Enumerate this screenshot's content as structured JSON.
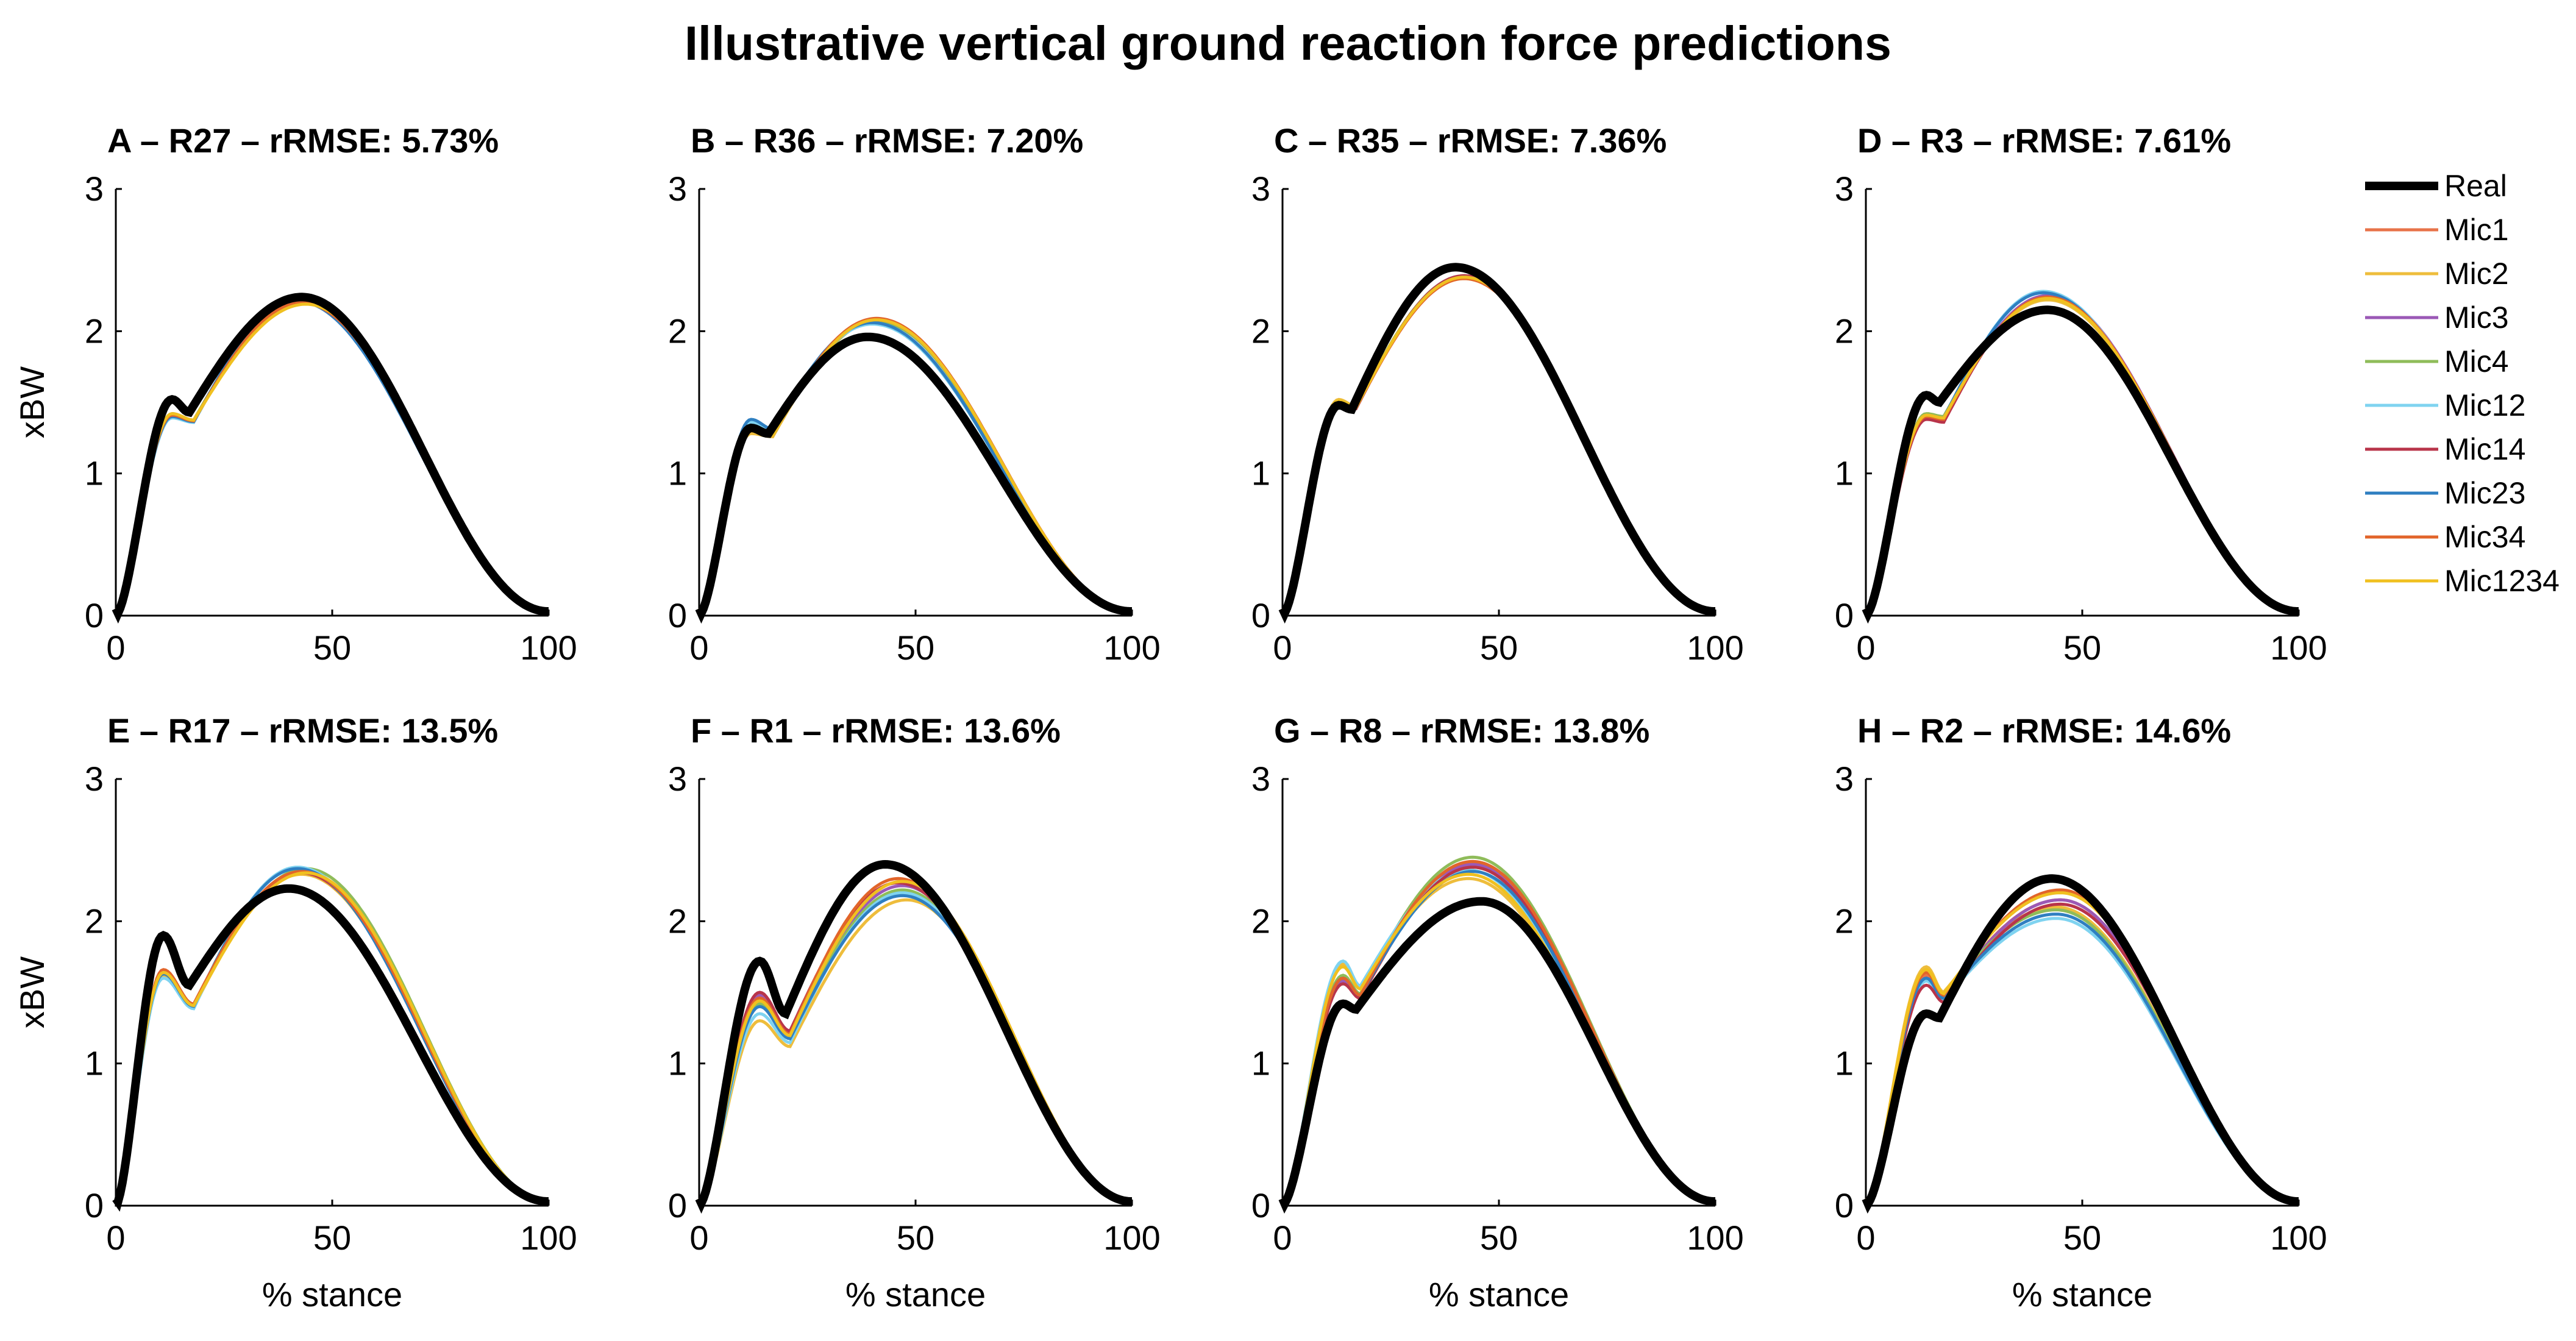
{
  "figure_title": "Illustrative vertical ground reaction force predictions",
  "x_axis_label": "% stance",
  "y_axis_label": "xBW",
  "x_ticks": [
    "0",
    "50",
    "100"
  ],
  "y_ticks": [
    "0",
    "1",
    "2",
    "3"
  ],
  "legend": [
    {
      "name": "Real",
      "color": "#000000"
    },
    {
      "name": "Mic1",
      "color": "#e8734a"
    },
    {
      "name": "Mic2",
      "color": "#eebd3c"
    },
    {
      "name": "Mic3",
      "color": "#9b59b6"
    },
    {
      "name": "Mic4",
      "color": "#8fbc5a"
    },
    {
      "name": "Mic12",
      "color": "#7fd3f0"
    },
    {
      "name": "Mic14",
      "color": "#b8344a"
    },
    {
      "name": "Mic23",
      "color": "#2f7fc1"
    },
    {
      "name": "Mic34",
      "color": "#e2652a"
    },
    {
      "name": "Mic1234",
      "color": "#f0c020"
    }
  ],
  "chart_data": [
    {
      "type": "line",
      "title": "A – R27 – rRMSE: 5.73%",
      "xlabel": "",
      "ylabel": "xBW",
      "xlim": [
        0,
        100
      ],
      "ylim": [
        0,
        3
      ],
      "real": {
        "impact_peak": 1.52,
        "impact_pos": 13,
        "valley": 1.43,
        "valley_pos": 17,
        "active_peak": 2.24,
        "active_pos": 43
      },
      "series": [
        {
          "name": "Mic1",
          "impact_peak": 1.42,
          "active_peak": 2.2,
          "active_pos": 43
        },
        {
          "name": "Mic2",
          "impact_peak": 1.4,
          "active_peak": 2.21,
          "active_pos": 43
        },
        {
          "name": "Mic3",
          "impact_peak": 1.41,
          "active_peak": 2.2,
          "active_pos": 43
        },
        {
          "name": "Mic4",
          "impact_peak": 1.42,
          "active_peak": 2.21,
          "active_pos": 43
        },
        {
          "name": "Mic12",
          "impact_peak": 1.39,
          "active_peak": 2.22,
          "active_pos": 42
        },
        {
          "name": "Mic14",
          "impact_peak": 1.41,
          "active_peak": 2.2,
          "active_pos": 43
        },
        {
          "name": "Mic23",
          "impact_peak": 1.4,
          "active_peak": 2.21,
          "active_pos": 42
        },
        {
          "name": "Mic34",
          "impact_peak": 1.41,
          "active_peak": 2.2,
          "active_pos": 43
        },
        {
          "name": "Mic1234",
          "impact_peak": 1.42,
          "active_peak": 2.19,
          "active_pos": 44
        }
      ]
    },
    {
      "type": "line",
      "title": "B – R36 – rRMSE: 7.20%",
      "xlabel": "",
      "ylabel": "",
      "xlim": [
        0,
        100
      ],
      "ylim": [
        0,
        3
      ],
      "real": {
        "impact_peak": 1.32,
        "impact_pos": 12,
        "valley": 1.28,
        "valley_pos": 16,
        "active_peak": 1.96,
        "active_pos": 39
      },
      "series": [
        {
          "name": "Mic1",
          "impact_peak": 1.3,
          "active_peak": 2.08,
          "active_pos": 41
        },
        {
          "name": "Mic2",
          "impact_peak": 1.28,
          "active_peak": 2.07,
          "active_pos": 41
        },
        {
          "name": "Mic3",
          "impact_peak": 1.31,
          "active_peak": 2.08,
          "active_pos": 41
        },
        {
          "name": "Mic4",
          "impact_peak": 1.3,
          "active_peak": 2.07,
          "active_pos": 41
        },
        {
          "name": "Mic12",
          "impact_peak": 1.36,
          "active_peak": 2.05,
          "active_pos": 40
        },
        {
          "name": "Mic14",
          "impact_peak": 1.3,
          "active_peak": 2.08,
          "active_pos": 41
        },
        {
          "name": "Mic23",
          "impact_peak": 1.38,
          "active_peak": 2.06,
          "active_pos": 40
        },
        {
          "name": "Mic34",
          "impact_peak": 1.32,
          "active_peak": 2.09,
          "active_pos": 41
        },
        {
          "name": "Mic1234",
          "impact_peak": 1.3,
          "active_peak": 2.08,
          "active_pos": 41
        }
      ]
    },
    {
      "type": "line",
      "title": "C – R35 – rRMSE: 7.36%",
      "xlabel": "",
      "ylabel": "",
      "xlim": [
        0,
        100
      ],
      "ylim": [
        0,
        3
      ],
      "real": {
        "impact_peak": 1.48,
        "impact_pos": 13,
        "valley": 1.45,
        "valley_pos": 16,
        "active_peak": 2.45,
        "active_pos": 40
      },
      "series": [
        {
          "name": "Mic1",
          "impact_peak": 1.5,
          "active_peak": 2.38,
          "active_pos": 42
        },
        {
          "name": "Mic2",
          "impact_peak": 1.52,
          "active_peak": 2.37,
          "active_pos": 42
        },
        {
          "name": "Mic3",
          "impact_peak": 1.5,
          "active_peak": 2.38,
          "active_pos": 42
        },
        {
          "name": "Mic4",
          "impact_peak": 1.51,
          "active_peak": 2.39,
          "active_pos": 42
        },
        {
          "name": "Mic12",
          "impact_peak": 1.5,
          "active_peak": 2.38,
          "active_pos": 42
        },
        {
          "name": "Mic14",
          "impact_peak": 1.49,
          "active_peak": 2.39,
          "active_pos": 42
        },
        {
          "name": "Mic23",
          "impact_peak": 1.5,
          "active_peak": 2.38,
          "active_pos": 42
        },
        {
          "name": "Mic34",
          "impact_peak": 1.5,
          "active_peak": 2.37,
          "active_pos": 42
        },
        {
          "name": "Mic1234",
          "impact_peak": 1.51,
          "active_peak": 2.38,
          "active_pos": 42
        }
      ]
    },
    {
      "type": "line",
      "title": "D – R3 – rRMSE: 7.61%",
      "xlabel": "",
      "ylabel": "",
      "xlim": [
        0,
        100
      ],
      "ylim": [
        0,
        3
      ],
      "real": {
        "impact_peak": 1.55,
        "impact_pos": 14,
        "valley": 1.5,
        "valley_pos": 17,
        "active_peak": 2.15,
        "active_pos": 42
      },
      "series": [
        {
          "name": "Mic1",
          "impact_peak": 1.4,
          "active_peak": 2.24,
          "active_pos": 42
        },
        {
          "name": "Mic2",
          "impact_peak": 1.42,
          "active_peak": 2.22,
          "active_pos": 42
        },
        {
          "name": "Mic3",
          "impact_peak": 1.41,
          "active_peak": 2.25,
          "active_pos": 42
        },
        {
          "name": "Mic4",
          "impact_peak": 1.42,
          "active_peak": 2.23,
          "active_pos": 42
        },
        {
          "name": "Mic12",
          "impact_peak": 1.4,
          "active_peak": 2.28,
          "active_pos": 41
        },
        {
          "name": "Mic14",
          "impact_peak": 1.38,
          "active_peak": 2.24,
          "active_pos": 42
        },
        {
          "name": "Mic23",
          "impact_peak": 1.41,
          "active_peak": 2.27,
          "active_pos": 41
        },
        {
          "name": "Mic34",
          "impact_peak": 1.4,
          "active_peak": 2.24,
          "active_pos": 42
        },
        {
          "name": "Mic1234",
          "impact_peak": 1.41,
          "active_peak": 2.23,
          "active_pos": 42
        }
      ]
    },
    {
      "type": "line",
      "title": "E – R17 – rRMSE: 13.5%",
      "xlabel": "% stance",
      "ylabel": "xBW",
      "xlim": [
        0,
        100
      ],
      "ylim": [
        0,
        3
      ],
      "real": {
        "impact_peak": 1.9,
        "impact_pos": 11,
        "valley": 1.55,
        "valley_pos": 17,
        "active_peak": 2.23,
        "active_pos": 40
      },
      "series": [
        {
          "name": "Mic1",
          "impact_peak": 1.65,
          "active_peak": 2.35,
          "active_pos": 43
        },
        {
          "name": "Mic2",
          "impact_peak": 1.62,
          "active_peak": 2.33,
          "active_pos": 43
        },
        {
          "name": "Mic3",
          "impact_peak": 1.64,
          "active_peak": 2.35,
          "active_pos": 43
        },
        {
          "name": "Mic4",
          "impact_peak": 1.63,
          "active_peak": 2.37,
          "active_pos": 44
        },
        {
          "name": "Mic12",
          "impact_peak": 1.6,
          "active_peak": 2.38,
          "active_pos": 42
        },
        {
          "name": "Mic14",
          "impact_peak": 1.65,
          "active_peak": 2.34,
          "active_pos": 43
        },
        {
          "name": "Mic23",
          "impact_peak": 1.63,
          "active_peak": 2.37,
          "active_pos": 42
        },
        {
          "name": "Mic34",
          "impact_peak": 1.66,
          "active_peak": 2.35,
          "active_pos": 43
        },
        {
          "name": "Mic1234",
          "impact_peak": 1.64,
          "active_peak": 2.34,
          "active_pos": 44
        }
      ]
    },
    {
      "type": "line",
      "title": "F – R1 – rRMSE: 13.6%",
      "xlabel": "% stance",
      "ylabel": "",
      "xlim": [
        0,
        100
      ],
      "ylim": [
        0,
        3
      ],
      "real": {
        "impact_peak": 1.72,
        "impact_pos": 14,
        "valley": 1.35,
        "valley_pos": 20,
        "active_peak": 2.4,
        "active_pos": 43
      },
      "series": [
        {
          "name": "Mic1",
          "impact_peak": 1.45,
          "active_peak": 2.28,
          "active_pos": 47
        },
        {
          "name": "Mic2",
          "impact_peak": 1.3,
          "active_peak": 2.15,
          "active_pos": 48
        },
        {
          "name": "Mic3",
          "impact_peak": 1.48,
          "active_peak": 2.25,
          "active_pos": 47
        },
        {
          "name": "Mic4",
          "impact_peak": 1.42,
          "active_peak": 2.22,
          "active_pos": 47
        },
        {
          "name": "Mic12",
          "impact_peak": 1.35,
          "active_peak": 2.2,
          "active_pos": 47
        },
        {
          "name": "Mic14",
          "impact_peak": 1.5,
          "active_peak": 2.27,
          "active_pos": 46
        },
        {
          "name": "Mic23",
          "impact_peak": 1.4,
          "active_peak": 2.18,
          "active_pos": 47
        },
        {
          "name": "Mic34",
          "impact_peak": 1.46,
          "active_peak": 2.3,
          "active_pos": 46
        },
        {
          "name": "Mic1234",
          "impact_peak": 1.44,
          "active_peak": 2.28,
          "active_pos": 47
        }
      ]
    },
    {
      "type": "line",
      "title": "G – R8 – rRMSE: 13.8%",
      "xlabel": "% stance",
      "ylabel": "",
      "xlim": [
        0,
        100
      ],
      "ylim": [
        0,
        3
      ],
      "real": {
        "impact_peak": 1.42,
        "impact_pos": 14,
        "valley": 1.38,
        "valley_pos": 17,
        "active_peak": 2.14,
        "active_pos": 46
      },
      "series": [
        {
          "name": "Mic1",
          "impact_peak": 1.6,
          "active_peak": 2.38,
          "active_pos": 44
        },
        {
          "name": "Mic2",
          "impact_peak": 1.7,
          "active_peak": 2.3,
          "active_pos": 43
        },
        {
          "name": "Mic3",
          "impact_peak": 1.58,
          "active_peak": 2.4,
          "active_pos": 44
        },
        {
          "name": "Mic4",
          "impact_peak": 1.62,
          "active_peak": 2.45,
          "active_pos": 44
        },
        {
          "name": "Mic12",
          "impact_peak": 1.72,
          "active_peak": 2.36,
          "active_pos": 43
        },
        {
          "name": "Mic14",
          "impact_peak": 1.56,
          "active_peak": 2.38,
          "active_pos": 44
        },
        {
          "name": "Mic23",
          "impact_peak": 1.6,
          "active_peak": 2.35,
          "active_pos": 44
        },
        {
          "name": "Mic34",
          "impact_peak": 1.6,
          "active_peak": 2.42,
          "active_pos": 44
        },
        {
          "name": "Mic1234",
          "impact_peak": 1.68,
          "active_peak": 2.33,
          "active_pos": 43
        }
      ]
    },
    {
      "type": "line",
      "title": "H – R2 – rRMSE: 14.6%",
      "xlabel": "% stance",
      "ylabel": "",
      "xlim": [
        0,
        100
      ],
      "ylim": [
        0,
        3
      ],
      "real": {
        "impact_peak": 1.35,
        "impact_pos": 14,
        "valley": 1.32,
        "valley_pos": 17,
        "active_peak": 2.3,
        "active_pos": 43
      },
      "series": [
        {
          "name": "Mic1",
          "impact_peak": 1.62,
          "active_peak": 2.15,
          "active_pos": 45
        },
        {
          "name": "Mic2",
          "impact_peak": 1.68,
          "active_peak": 2.1,
          "active_pos": 44
        },
        {
          "name": "Mic3",
          "impact_peak": 1.6,
          "active_peak": 2.15,
          "active_pos": 45
        },
        {
          "name": "Mic4",
          "impact_peak": 1.65,
          "active_peak": 2.08,
          "active_pos": 44
        },
        {
          "name": "Mic12",
          "impact_peak": 1.58,
          "active_peak": 2.02,
          "active_pos": 44
        },
        {
          "name": "Mic14",
          "impact_peak": 1.55,
          "active_peak": 2.12,
          "active_pos": 45
        },
        {
          "name": "Mic23",
          "impact_peak": 1.6,
          "active_peak": 2.05,
          "active_pos": 44
        },
        {
          "name": "Mic34",
          "impact_peak": 1.64,
          "active_peak": 2.22,
          "active_pos": 45
        },
        {
          "name": "Mic1234",
          "impact_peak": 1.66,
          "active_peak": 2.2,
          "active_pos": 45
        }
      ]
    }
  ]
}
